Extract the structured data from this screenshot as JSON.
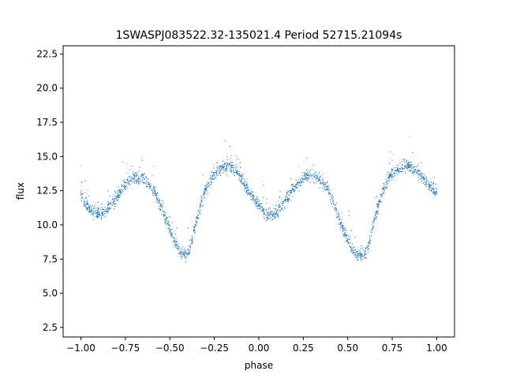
{
  "chart_data": {
    "type": "scatter",
    "title": "1SWASPJ083522.32-135021.4 Period 52715.21094s",
    "xlabel": "phase",
    "ylabel": "flux",
    "xlim": [
      -1.1,
      1.1
    ],
    "ylim": [
      1.8,
      23.1
    ],
    "xticks": [
      -1.0,
      -0.75,
      -0.5,
      -0.25,
      0.0,
      0.25,
      0.5,
      0.75,
      1.0
    ],
    "xtick_labels": [
      "−1.00",
      "−0.75",
      "−0.50",
      "−0.25",
      "0.00",
      "0.25",
      "0.50",
      "0.75",
      "1.00"
    ],
    "yticks": [
      2.5,
      5.0,
      7.5,
      10.0,
      12.5,
      15.0,
      17.5,
      20.0,
      22.5
    ],
    "ytick_labels": [
      "2.5",
      "5.0",
      "7.5",
      "10.0",
      "12.5",
      "15.0",
      "17.5",
      "20.0",
      "22.5"
    ],
    "grid": false,
    "marker_color": "#1f77b4",
    "series": [
      {
        "x": [
          -1.0,
          -0.97,
          -0.94,
          -0.9,
          -0.86,
          -0.82,
          -0.78,
          -0.74,
          -0.7,
          -0.66,
          -0.62,
          -0.58,
          -0.54,
          -0.5,
          -0.47,
          -0.44,
          -0.42,
          -0.4,
          -0.38,
          -0.36,
          -0.33,
          -0.3,
          -0.26,
          -0.22,
          -0.18,
          -0.15,
          -0.12,
          -0.08,
          -0.04,
          0.0,
          0.03,
          0.06,
          0.1,
          0.14,
          0.18,
          0.22,
          0.26,
          0.3,
          0.34,
          0.38,
          0.42,
          0.46,
          0.5,
          0.53,
          0.56,
          0.58,
          0.6,
          0.62,
          0.64,
          0.67,
          0.7,
          0.74,
          0.78,
          0.82,
          0.85,
          0.88,
          0.92,
          0.96,
          1.0
        ],
        "y": [
          12.3,
          11.5,
          11.0,
          10.8,
          11.0,
          11.6,
          12.4,
          13.1,
          13.5,
          13.5,
          13.1,
          12.3,
          11.0,
          9.6,
          8.7,
          8.0,
          7.8,
          7.9,
          8.6,
          9.8,
          11.3,
          12.6,
          13.6,
          14.1,
          14.3,
          14.2,
          13.8,
          13.0,
          12.1,
          11.4,
          10.9,
          10.7,
          10.9,
          11.6,
          12.4,
          13.1,
          13.5,
          13.6,
          13.4,
          12.8,
          11.6,
          10.1,
          8.9,
          8.1,
          7.8,
          7.8,
          7.9,
          8.6,
          9.8,
          11.3,
          12.6,
          13.6,
          14.1,
          14.3,
          14.3,
          14.0,
          13.5,
          12.9,
          12.3
        ]
      }
    ]
  }
}
